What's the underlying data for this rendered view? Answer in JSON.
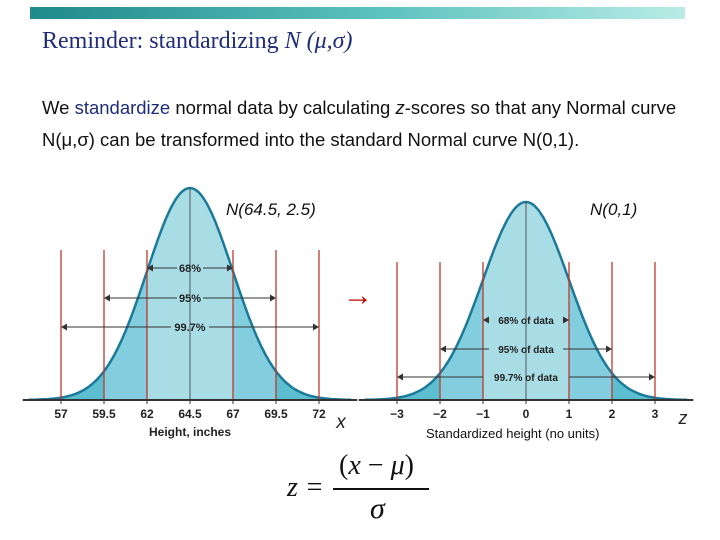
{
  "slide": {
    "title_prefix": "Reminder: standardizing ",
    "title_math": "N (μ,σ)",
    "intro_1": "We ",
    "intro_keyword": "standardize",
    "intro_2": " normal data by calculating ",
    "intro_z": "z",
    "intro_3": "-scores so that any Normal curve ",
    "intro_math_1": "N(μ,σ)",
    "intro_4": " can be transformed into the standard Normal curve ",
    "intro_math_2": "N(0,1)",
    "intro_5": "."
  },
  "colors": {
    "curve_fill": "#a9dde6",
    "tail_fill": "#5bbfd0",
    "curve_line": "#1b7a9a",
    "guide": "#c0392b",
    "title": "#1f2d7a",
    "arrow": "#c00000"
  },
  "left_plot": {
    "label": "N(64.5, 2.5)",
    "ticks": [
      "57",
      "59.5",
      "62",
      "64.5",
      "67",
      "69.5",
      "72"
    ],
    "axis_label": "Height, inches",
    "axis_var": "x",
    "bands": [
      "68%",
      "95%",
      "99.7%"
    ]
  },
  "right_plot": {
    "label": "N(0,1)",
    "ticks": [
      "−3",
      "−2",
      "−1",
      "0",
      "1",
      "2",
      "3"
    ],
    "axis_label": "Standardized height (no units)",
    "axis_var": "z",
    "bands": [
      "68% of data",
      "95% of data",
      "99.7% of data"
    ]
  },
  "arrow_symbol": "→",
  "formula": {
    "lhs": "z =",
    "num_open": "(",
    "num_x": "x",
    "num_minus": " − ",
    "num_mu": "μ",
    "num_close": ")",
    "den": "σ"
  }
}
